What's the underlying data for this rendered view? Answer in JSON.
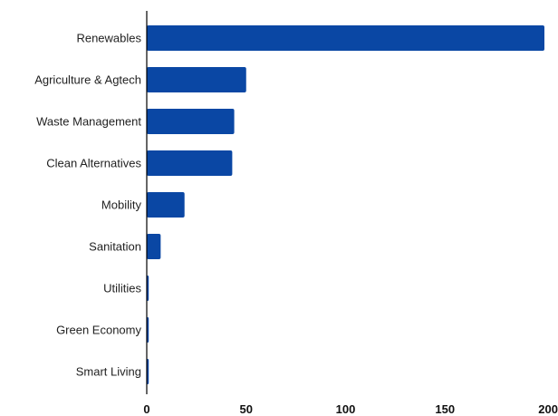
{
  "chart_data": {
    "type": "bar",
    "orientation": "horizontal",
    "title": "",
    "xlabel": "",
    "ylabel": "",
    "categories": [
      "Renewables",
      "Agriculture & Agtech",
      "Waste Management",
      "Clean Alternatives",
      "Mobility",
      "Sanitation",
      "Utilities",
      "Green Economy",
      "Smart Living"
    ],
    "values": [
      200,
      50,
      44,
      43,
      19,
      7,
      1,
      1,
      1
    ],
    "xlim": [
      0,
      200
    ],
    "xticks": [
      0,
      50,
      100,
      150,
      200
    ],
    "xtick_labels": [
      "0",
      "50",
      "100",
      "150",
      "200"
    ],
    "grid": false,
    "colors": {
      "bar": "#0a47a4",
      "axis": "#000000"
    }
  }
}
